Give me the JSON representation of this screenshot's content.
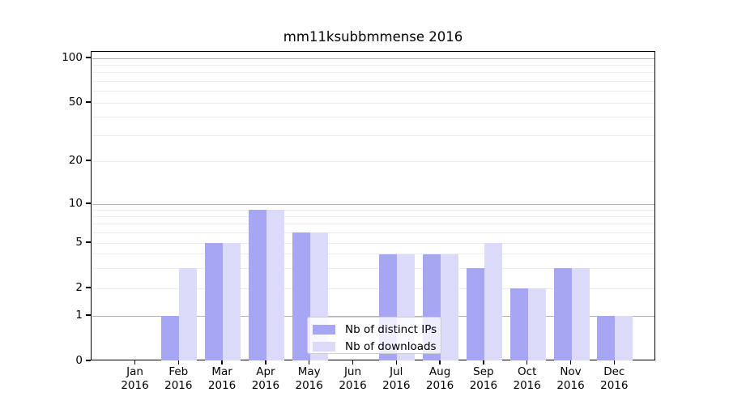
{
  "chart_data": {
    "type": "bar",
    "title": "mm11ksubbmmense 2016",
    "categories": [
      "Jan 2016",
      "Feb 2016",
      "Mar 2016",
      "Apr 2016",
      "May 2016",
      "Jun 2016",
      "Jul 2016",
      "Aug 2016",
      "Sep 2016",
      "Oct 2016",
      "Nov 2016",
      "Dec 2016"
    ],
    "series": [
      {
        "name": "Nb of distinct IPs",
        "color": "#a6a6f4",
        "values": [
          0,
          1,
          5,
          9,
          6,
          0,
          4,
          4,
          3,
          2,
          3,
          1
        ]
      },
      {
        "name": "Nb of downloads",
        "color": "#dbdbf9",
        "values": [
          0,
          3,
          5,
          9,
          6,
          0,
          4,
          4,
          5,
          2,
          3,
          1
        ]
      }
    ],
    "xlabel": "",
    "ylabel": "",
    "yticks": [
      0,
      1,
      2,
      5,
      10,
      20,
      50,
      100
    ],
    "ylim": [
      0,
      110
    ],
    "yscale": "symlog",
    "grid": "horizontal; light minor lines, gray major lines at 1, 10, 100",
    "legend_position": "lower center",
    "bar_layout": "paired, side-by-side, centered on month tick"
  }
}
